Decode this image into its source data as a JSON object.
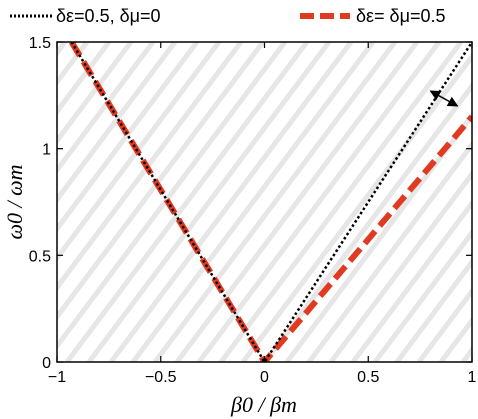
{
  "chart_data": {
    "type": "line",
    "xlabel": "β0 / βm",
    "ylabel": "ω0 / ωm",
    "xlim": [
      -1,
      1
    ],
    "ylim": [
      0,
      1.5
    ],
    "x_ticks": [
      -1,
      -0.5,
      0,
      0.5,
      1
    ],
    "x_tick_labels": [
      "−1",
      "−0.5",
      "0",
      "0.5",
      "1"
    ],
    "y_ticks": [
      0,
      0.5,
      1,
      1.5
    ],
    "y_tick_labels": [
      "0",
      "0.5",
      "1",
      "1.5"
    ],
    "grid": false,
    "legend_position": "top",
    "series": [
      {
        "name": "δε=0.5, δμ=0",
        "color": "#000000",
        "style": "dotted",
        "x": [
          -0.93,
          0,
          1
        ],
        "y": [
          1.5,
          0,
          1.5
        ]
      },
      {
        "name": "δε= δμ=0.5",
        "color": "#e03a20",
        "style": "dashed",
        "x": [
          -0.93,
          0,
          1
        ],
        "y": [
          1.5,
          0,
          1.15
        ]
      }
    ],
    "annotations": [
      {
        "type": "double-arrow",
        "from": [
          0.8,
          1.27
        ],
        "to": [
          0.93,
          1.2
        ]
      }
    ],
    "background": "diagonal hatching"
  }
}
